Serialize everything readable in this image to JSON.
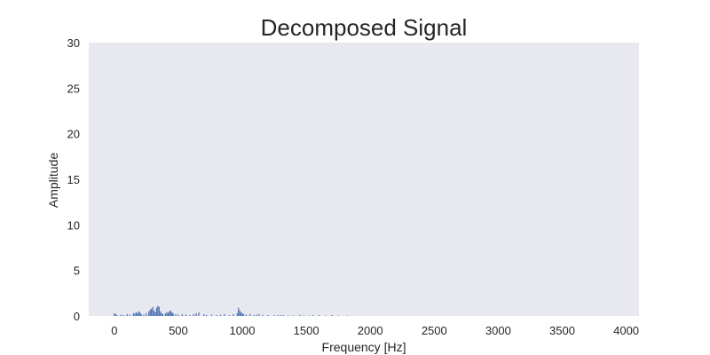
{
  "chart_data": {
    "type": "bar",
    "title": "Decomposed Signal",
    "xlabel": "Frequency [Hz]",
    "ylabel": "Amplitude",
    "xlim": [
      -200,
      4100
    ],
    "ylim": [
      0,
      30
    ],
    "xticks": [
      0,
      500,
      1000,
      1500,
      2000,
      2500,
      3000,
      3500,
      4000
    ],
    "yticks": [
      0,
      5,
      10,
      15,
      20,
      25,
      30
    ],
    "grid": false,
    "background": "#e8e8f1",
    "bar_color": "#4c72b0",
    "x": [
      0,
      10,
      20,
      50,
      70,
      100,
      120,
      150,
      160,
      170,
      180,
      190,
      200,
      210,
      230,
      250,
      270,
      280,
      290,
      300,
      310,
      320,
      330,
      340,
      350,
      360,
      370,
      380,
      400,
      410,
      420,
      430,
      440,
      450,
      460,
      480,
      500,
      530,
      560,
      590,
      620,
      640,
      660,
      700,
      720,
      760,
      800,
      830,
      860,
      900,
      930,
      960,
      970,
      980,
      990,
      1000,
      1010,
      1030,
      1060,
      1090,
      1110,
      1130,
      1160,
      1200,
      1250,
      1280,
      1300,
      1320,
      1360,
      1400,
      1450,
      1480,
      1520,
      1550,
      1600,
      1650,
      1700,
      1750,
      1820
    ],
    "values": [
      0.3,
      0.2,
      0.1,
      0.15,
      0.1,
      0.2,
      0.15,
      0.3,
      0.25,
      0.4,
      0.3,
      0.5,
      0.4,
      0.2,
      0.15,
      0.3,
      0.5,
      0.7,
      0.8,
      1.0,
      0.6,
      0.4,
      0.9,
      1.1,
      1.0,
      0.5,
      0.3,
      0.2,
      0.3,
      0.4,
      0.35,
      0.5,
      0.6,
      0.4,
      0.3,
      0.2,
      0.15,
      0.2,
      0.15,
      0.1,
      0.2,
      0.3,
      0.4,
      0.2,
      0.1,
      0.15,
      0.1,
      0.15,
      0.2,
      0.1,
      0.2,
      0.3,
      0.9,
      0.6,
      0.4,
      0.3,
      0.2,
      0.15,
      0.2,
      0.1,
      0.15,
      0.2,
      0.1,
      0.1,
      0.1,
      0.1,
      0.1,
      0.1,
      0.05,
      0.05,
      0.1,
      0.05,
      0.05,
      0.1,
      0.1,
      0.05,
      0.1,
      0.05,
      0.05
    ]
  }
}
